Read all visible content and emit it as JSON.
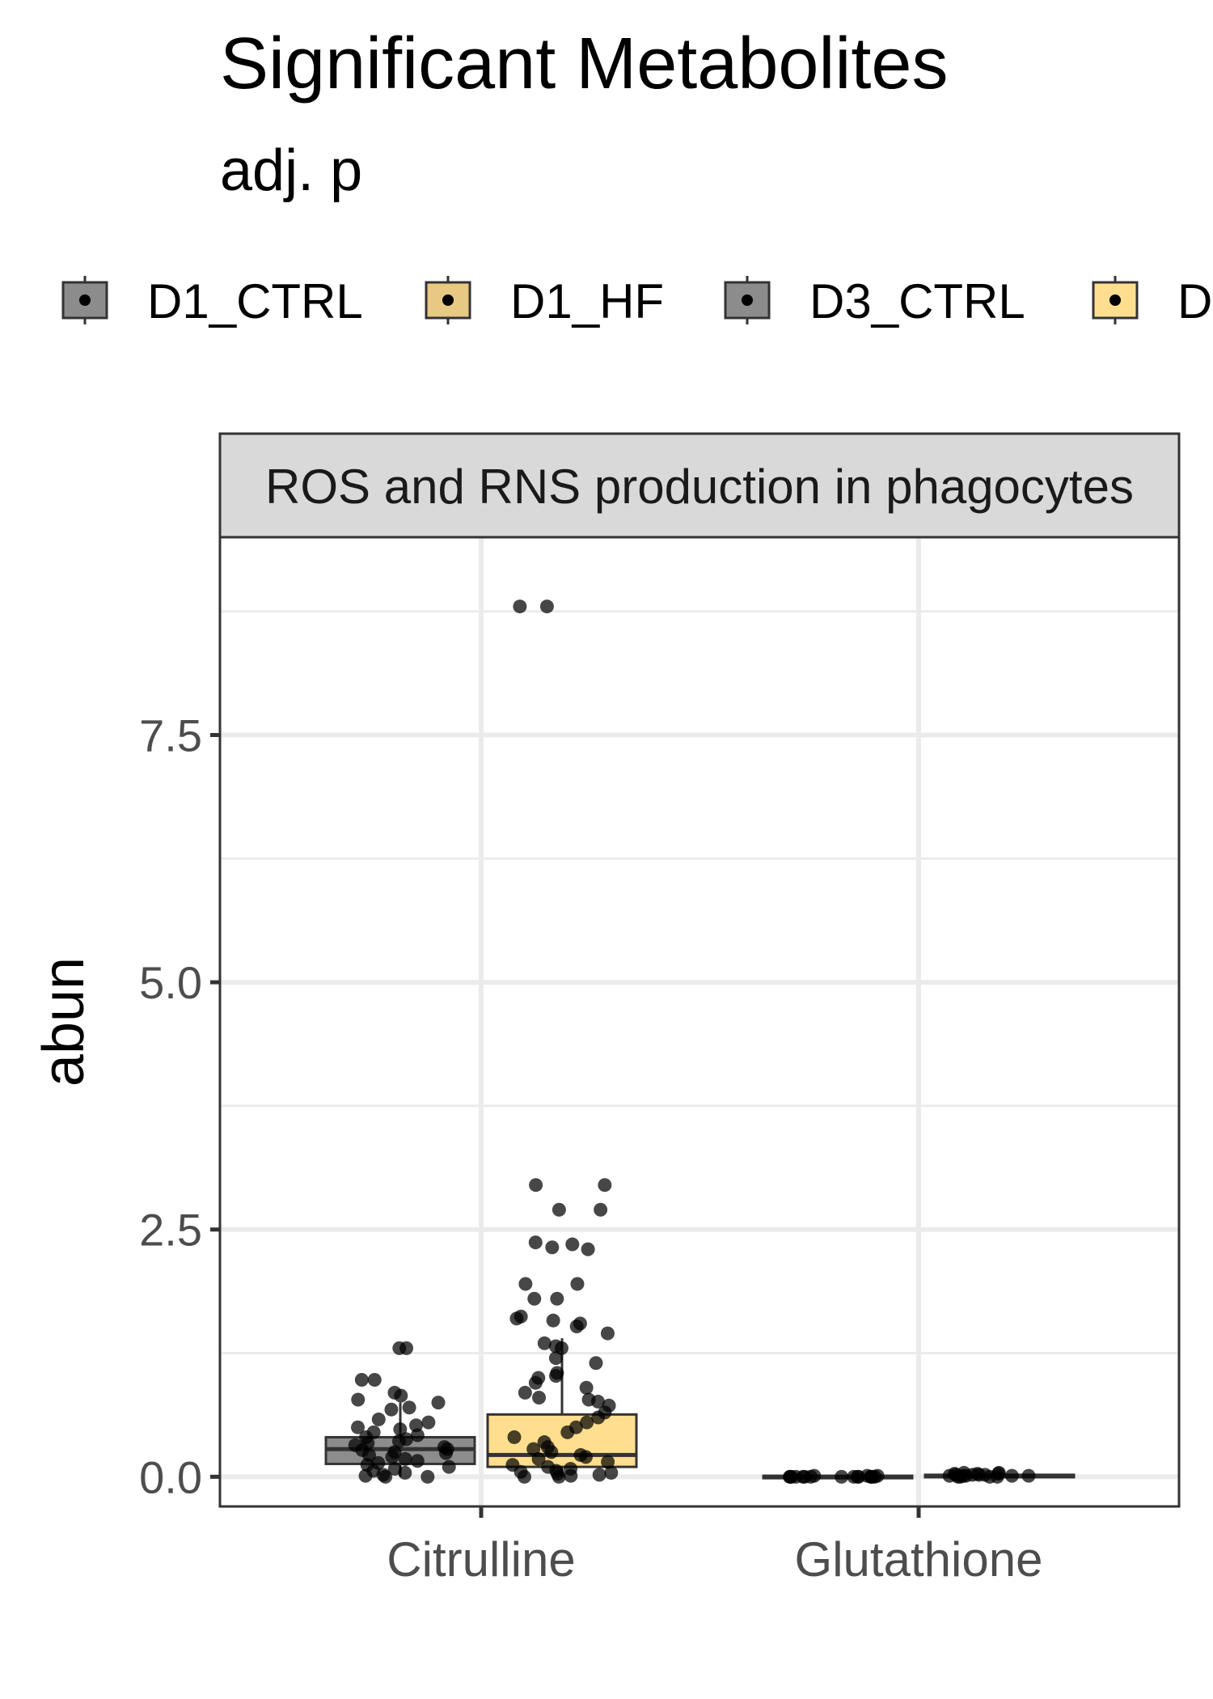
{
  "chart_data": {
    "type": "box",
    "title": "Significant Metabolites",
    "subtitle": "adj. p",
    "xlabel": "",
    "ylabel": "abun",
    "facet": "ROS and RNS production in phagocytes",
    "categories": [
      "Citrulline",
      "Glutathione"
    ],
    "ylim": [
      -0.3,
      9.5
    ],
    "yticks": [
      "0.0",
      "2.5",
      "5.0",
      "7.5"
    ],
    "grid": true,
    "legend_position": "top",
    "legend": [
      {
        "label": "D1_CTRL",
        "color": "#8c8c8c"
      },
      {
        "label": "D1_HF",
        "color": "#e8c983"
      },
      {
        "label": "D3_CTRL",
        "color": "#8c8c8c"
      },
      {
        "label": "D",
        "color": "#ffdf8f"
      }
    ],
    "series": [
      {
        "category": "Citrulline",
        "group": "D1_CTRL",
        "color": "#8c8c8c",
        "q1": 0.13,
        "median": 0.28,
        "q3": 0.4,
        "whisker_low": 0.0,
        "whisker_high": 0.75,
        "points": [
          1.3,
          1.3,
          0.98,
          0.98,
          0.85,
          0.82,
          0.78,
          0.75,
          0.7,
          0.68,
          0.58,
          0.55,
          0.52,
          0.5,
          0.48,
          0.45,
          0.42,
          0.4,
          0.38,
          0.36,
          0.34,
          0.32,
          0.3,
          0.28,
          0.27,
          0.25,
          0.24,
          0.22,
          0.2,
          0.18,
          0.16,
          0.14,
          0.12,
          0.1,
          0.08,
          0.06,
          0.04,
          0.02,
          0.01,
          0.0,
          0.0
        ]
      },
      {
        "category": "Citrulline",
        "group": "D1_HF",
        "color": "#ffdf8f",
        "q1": 0.1,
        "median": 0.22,
        "q3": 0.63,
        "whisker_low": 0.0,
        "whisker_high": 1.4,
        "points": [
          8.8,
          8.8,
          2.95,
          2.95,
          2.7,
          2.7,
          2.37,
          2.35,
          2.32,
          2.3,
          1.95,
          1.95,
          1.8,
          1.8,
          1.62,
          1.6,
          1.58,
          1.55,
          1.52,
          1.45,
          1.35,
          1.32,
          1.3,
          1.2,
          1.15,
          1.05,
          1.02,
          1.0,
          0.95,
          0.9,
          0.85,
          0.8,
          0.78,
          0.76,
          0.72,
          0.65,
          0.6,
          0.55,
          0.5,
          0.45,
          0.4,
          0.35,
          0.3,
          0.28,
          0.25,
          0.22,
          0.2,
          0.18,
          0.15,
          0.12,
          0.1,
          0.08,
          0.06,
          0.05,
          0.04,
          0.03,
          0.02,
          0.01,
          0.0,
          0.0
        ]
      },
      {
        "category": "Glutathione",
        "group": "D1_CTRL",
        "color": "#8c8c8c",
        "q1": 0.0,
        "median": 0.0,
        "q3": 0.01,
        "whisker_low": 0.0,
        "whisker_high": 0.01,
        "points": [
          0.01,
          0.01,
          0.01,
          0.0,
          0.0,
          0.0,
          0.0,
          0.0,
          0.0,
          0.0,
          0.0,
          0.0,
          0.0,
          0.0,
          0.0,
          0.0,
          0.0,
          0.0
        ]
      },
      {
        "category": "Glutathione",
        "group": "D1_HF",
        "color": "#ffdf8f",
        "q1": 0.0,
        "median": 0.01,
        "q3": 0.02,
        "whisker_low": 0.0,
        "whisker_high": 0.04,
        "points": [
          0.04,
          0.04,
          0.03,
          0.03,
          0.03,
          0.02,
          0.02,
          0.02,
          0.02,
          0.01,
          0.01,
          0.01,
          0.01,
          0.01,
          0.0,
          0.0,
          0.0,
          0.0
        ]
      }
    ]
  }
}
